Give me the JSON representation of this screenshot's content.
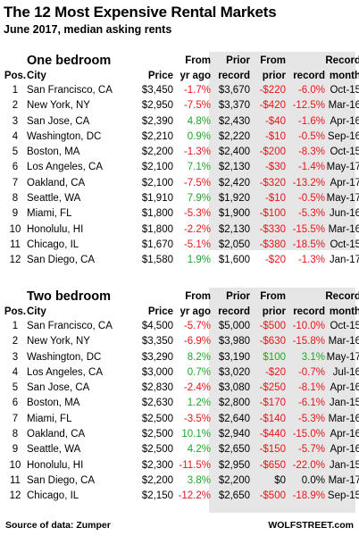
{
  "title": "The 12 Most Expensive Rental Markets",
  "subtitle": "June 2017, median asking rents",
  "headers": {
    "pos": "Pos.",
    "city": "City",
    "price": "Price",
    "yr_top": "From",
    "yr_bottom": "yr ago",
    "prior_top": "Prior",
    "prior_bottom": "record",
    "from_record_top": "From",
    "from_record_dollar": "prior",
    "from_record_pct": "record",
    "month_top": "Record",
    "month_bottom": "month"
  },
  "one_bedroom": {
    "section_title": "One bedroom",
    "rows": [
      {
        "pos": "1",
        "city": "San Francisco, CA",
        "price": "$3,450",
        "yr": "-1.7%",
        "prior": "$3,670",
        "diff": "-$220",
        "pct": "-6.0%",
        "month": "Oct-15"
      },
      {
        "pos": "2",
        "city": "New York, NY",
        "price": "$2,950",
        "yr": "-7.5%",
        "prior": "$3,370",
        "diff": "-$420",
        "pct": "-12.5%",
        "month": "Mar-16"
      },
      {
        "pos": "3",
        "city": "San Jose, CA",
        "price": "$2,390",
        "yr": "4.8%",
        "prior": "$2,430",
        "diff": "-$40",
        "pct": "-1.6%",
        "month": "Apr-16"
      },
      {
        "pos": "4",
        "city": "Washington, DC",
        "price": "$2,210",
        "yr": "0.9%",
        "prior": "$2,220",
        "diff": "-$10",
        "pct": "-0.5%",
        "month": "Sep-16"
      },
      {
        "pos": "5",
        "city": "Boston, MA",
        "price": "$2,200",
        "yr": "-1.3%",
        "prior": "$2,400",
        "diff": "-$200",
        "pct": "-8.3%",
        "month": "Oct-15"
      },
      {
        "pos": "6",
        "city": "Los Angeles, CA",
        "price": "$2,100",
        "yr": "7.1%",
        "prior": "$2,130",
        "diff": "-$30",
        "pct": "-1.4%",
        "month": "May-17"
      },
      {
        "pos": "7",
        "city": "Oakland, CA",
        "price": "$2,100",
        "yr": "-7.5%",
        "prior": "$2,420",
        "diff": "-$320",
        "pct": "-13.2%",
        "month": "Apr-17"
      },
      {
        "pos": "8",
        "city": "Seattle, WA",
        "price": "$1,910",
        "yr": "7.9%",
        "prior": "$1,920",
        "diff": "-$10",
        "pct": "-0.5%",
        "month": "May-17"
      },
      {
        "pos": "9",
        "city": "Miami, FL",
        "price": "$1,800",
        "yr": "-5.3%",
        "prior": "$1,900",
        "diff": "-$100",
        "pct": "-5.3%",
        "month": "Jun-16"
      },
      {
        "pos": "10",
        "city": "Honolulu, HI",
        "price": "$1,800",
        "yr": "-2.2%",
        "prior": "$2,130",
        "diff": "-$330",
        "pct": "-15.5%",
        "month": "Mar-16"
      },
      {
        "pos": "11",
        "city": "Chicago, IL",
        "price": "$1,670",
        "yr": "-5.1%",
        "prior": "$2,050",
        "diff": "-$380",
        "pct": "-18.5%",
        "month": "Oct-15"
      },
      {
        "pos": "12",
        "city": "San Diego, CA",
        "price": "$1,580",
        "yr": "1.9%",
        "prior": "$1,600",
        "diff": "-$20",
        "pct": "-1.3%",
        "month": "Jan-17"
      }
    ]
  },
  "two_bedroom": {
    "section_title": "Two bedroom",
    "rows": [
      {
        "pos": "1",
        "city": "San Francisco, CA",
        "price": "$4,500",
        "yr": "-5.7%",
        "prior": "$5,000",
        "diff": "-$500",
        "pct": "-10.0%",
        "month": "Oct-15"
      },
      {
        "pos": "2",
        "city": "New York, NY",
        "price": "$3,350",
        "yr": "-6.9%",
        "prior": "$3,980",
        "diff": "-$630",
        "pct": "-15.8%",
        "month": "Mar-16"
      },
      {
        "pos": "3",
        "city": "Washington, DC",
        "price": "$3,290",
        "yr": "8.2%",
        "prior": "$3,190",
        "diff": "$100",
        "pct": "3.1%",
        "month": "May-17"
      },
      {
        "pos": "4",
        "city": "Los Angeles, CA",
        "price": "$3,000",
        "yr": "0.7%",
        "prior": "$3,020",
        "diff": "-$20",
        "pct": "-0.7%",
        "month": "Jul-16"
      },
      {
        "pos": "5",
        "city": "San Jose, CA",
        "price": "$2,830",
        "yr": "-2.4%",
        "prior": "$3,080",
        "diff": "-$250",
        "pct": "-8.1%",
        "month": "Apr-16"
      },
      {
        "pos": "6",
        "city": "Boston, MA",
        "price": "$2,630",
        "yr": "1.2%",
        "prior": "$2,800",
        "diff": "-$170",
        "pct": "-6.1%",
        "month": "Jan-15"
      },
      {
        "pos": "7",
        "city": "Miami, FL",
        "price": "$2,500",
        "yr": "-3.5%",
        "prior": "$2,640",
        "diff": "-$140",
        "pct": "-5.3%",
        "month": "Mar-16"
      },
      {
        "pos": "8",
        "city": "Oakland, CA",
        "price": "$2,500",
        "yr": "10.1%",
        "prior": "$2,940",
        "diff": "-$440",
        "pct": "-15.0%",
        "month": "Apr-16"
      },
      {
        "pos": "9",
        "city": "Seattle, WA",
        "price": "$2,500",
        "yr": "4.2%",
        "prior": "$2,650",
        "diff": "-$150",
        "pct": "-5.7%",
        "month": "Apr-16"
      },
      {
        "pos": "10",
        "city": "Honolulu, HI",
        "price": "$2,300",
        "yr": "-11.5%",
        "prior": "$2,950",
        "diff": "-$650",
        "pct": "-22.0%",
        "month": "Jan-15"
      },
      {
        "pos": "11",
        "city": "San Diego, CA",
        "price": "$2,200",
        "yr": "3.8%",
        "prior": "$2,200",
        "diff": "$0",
        "pct": "0.0%",
        "month": "Mar-17"
      },
      {
        "pos": "12",
        "city": "Chicago, IL",
        "price": "$2,150",
        "yr": "-12.2%",
        "prior": "$2,650",
        "diff": "-$500",
        "pct": "-18.9%",
        "month": "Sep-15"
      }
    ]
  },
  "colors": {
    "negative": "#e8141b",
    "positive": "#1fa52a",
    "shade": "#e6e6e6"
  },
  "footer": {
    "source": "Source of data: Zumper",
    "brand": "WOLFSTREET.com"
  }
}
